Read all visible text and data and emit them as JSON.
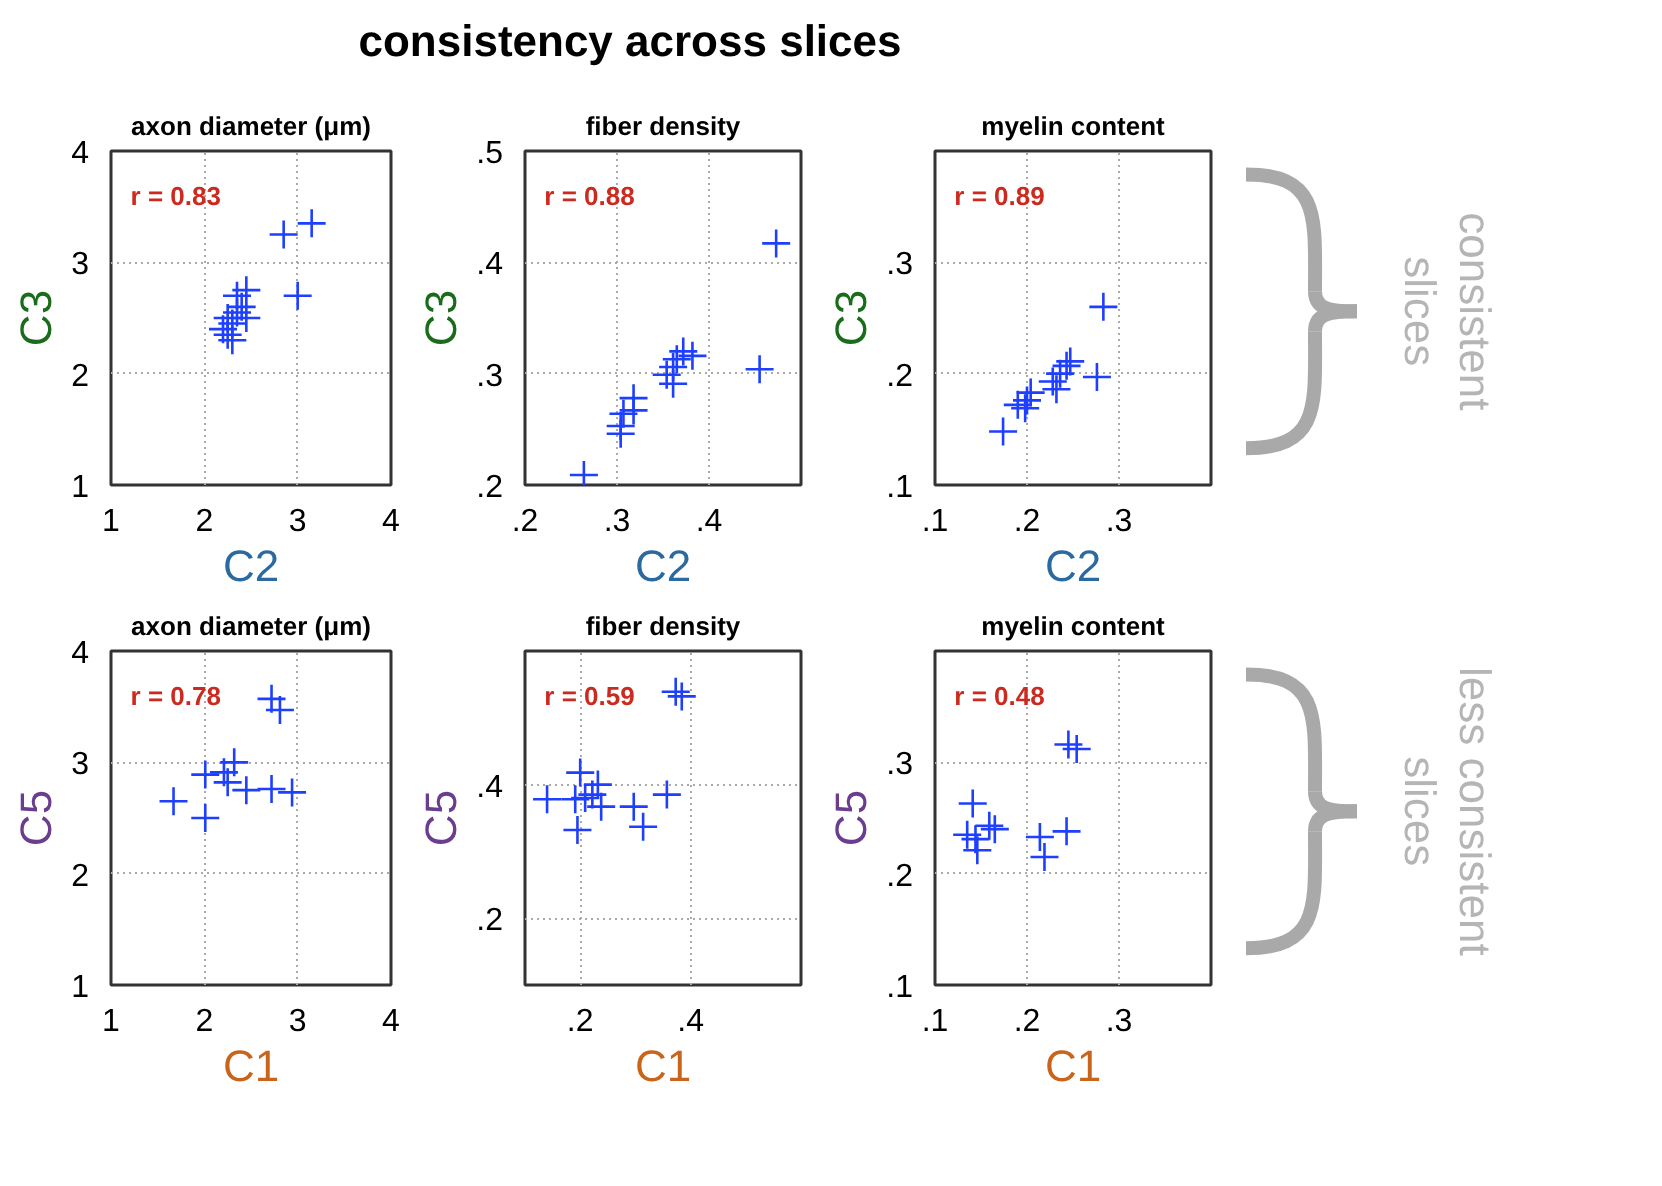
{
  "chart_data": [
    {
      "type": "scatter",
      "title": "axon diameter (μm)",
      "xlabel": "C2",
      "ylabel": "C3",
      "annotations": [
        "r = 0.83",
        "consistency across slices"
      ],
      "marker": "cross",
      "grid": true,
      "xlim": [
        1,
        4
      ],
      "ylim": [
        1,
        4
      ],
      "xticks": [
        1,
        2,
        3,
        4
      ],
      "yticks": [
        1,
        2,
        3,
        4
      ],
      "series": [
        {
          "color": "#1f3fff",
          "x": [
            2.2,
            2.25,
            2.25,
            2.3,
            2.35,
            2.35,
            2.4,
            2.45,
            2.45,
            2.85,
            3.15,
            3.0,
            2.3
          ],
          "values": [
            2.4,
            2.35,
            2.5,
            2.45,
            2.7,
            2.55,
            2.6,
            2.5,
            2.75,
            3.25,
            3.35,
            2.7,
            2.3
          ]
        }
      ]
    },
    {
      "type": "scatter",
      "title": "fiber density",
      "xlabel": "C2",
      "ylabel": "C3",
      "annotations": [
        "r = 0.88"
      ],
      "marker": "cross",
      "grid": true,
      "xlim": [
        0.2,
        0.5
      ],
      "ylim": [
        0.2,
        0.5
      ],
      "xticks": [
        {
          "value": 0.2,
          "label": ".2"
        },
        {
          "value": 0.3,
          "label": ".3"
        },
        {
          "value": 0.4,
          "label": ".4"
        }
      ],
      "yticks": [
        {
          "value": 0.2,
          "label": ".2"
        },
        {
          "value": 0.3,
          "label": ".3"
        },
        {
          "value": 0.4,
          "label": ".4"
        },
        {
          "value": 0.5,
          "label": ".5"
        }
      ],
      "series": [
        {
          "color": "#1f3fff",
          "x": [
            0.264,
            0.304,
            0.304,
            0.307,
            0.318,
            0.354,
            0.361,
            0.365,
            0.372,
            0.382,
            0.361,
            0.455,
            0.473,
            0.318
          ],
          "values": [
            0.209,
            0.253,
            0.246,
            0.264,
            0.278,
            0.299,
            0.291,
            0.313,
            0.32,
            0.316,
            0.306,
            0.304,
            0.417,
            0.267
          ]
        }
      ]
    },
    {
      "type": "scatter",
      "title": "myelin content",
      "xlabel": "C2",
      "ylabel": "C3",
      "annotations": [
        "r = 0.89",
        "consistent\nslices"
      ],
      "marker": "cross",
      "grid": true,
      "xlim": [
        0.1,
        0.4
      ],
      "ylim": [
        0.1,
        0.4
      ],
      "xticks": [
        {
          "value": 0.1,
          "label": ".1"
        },
        {
          "value": 0.2,
          "label": ".2"
        },
        {
          "value": 0.3,
          "label": ".3"
        }
      ],
      "yticks": [
        {
          "value": 0.1,
          "label": ".1"
        },
        {
          "value": 0.2,
          "label": ".2"
        },
        {
          "value": 0.3,
          "label": ".3"
        }
      ],
      "series": [
        {
          "color": "#1f3fff",
          "x": [
            0.174,
            0.19,
            0.2,
            0.204,
            0.228,
            0.232,
            0.236,
            0.243,
            0.247,
            0.276,
            0.283,
            0.198
          ],
          "values": [
            0.148,
            0.172,
            0.176,
            0.183,
            0.193,
            0.186,
            0.2,
            0.207,
            0.211,
            0.197,
            0.26,
            0.169
          ]
        }
      ]
    },
    {
      "type": "scatter",
      "title": "axon diameter (μm)",
      "xlabel": "C1",
      "ylabel": "C5",
      "annotations": [
        "r = 0.78"
      ],
      "marker": "cross",
      "grid": true,
      "xlim": [
        1,
        4
      ],
      "ylim": [
        1,
        4
      ],
      "xticks": [
        1,
        2,
        3,
        4
      ],
      "yticks": [
        1,
        2,
        3,
        4
      ],
      "series": [
        {
          "color": "#1f3fff",
          "x": [
            1.67,
            2.01,
            2.01,
            2.21,
            2.32,
            2.45,
            2.72,
            2.94,
            2.72,
            2.81,
            2.25
          ],
          "values": [
            2.65,
            2.5,
            2.89,
            2.91,
            3.0,
            2.75,
            2.76,
            2.73,
            3.57,
            3.47,
            2.82
          ]
        }
      ]
    },
    {
      "type": "scatter",
      "title": "fiber density",
      "xlabel": "C1",
      "ylabel": "C5",
      "annotations": [
        "r = 0.59"
      ],
      "marker": "cross",
      "grid": true,
      "xlim": [
        0.1,
        0.6
      ],
      "ylim": [
        0.1,
        0.6
      ],
      "xticks": [
        {
          "value": 0.2,
          "label": ".2"
        },
        {
          "value": 0.4,
          "label": ".4"
        }
      ],
      "yticks": [
        {
          "value": 0.2,
          "label": ".2"
        },
        {
          "value": 0.4,
          "label": ".4"
        }
      ],
      "series": [
        {
          "color": "#1f3fff",
          "x": [
            0.14,
            0.191,
            0.2,
            0.195,
            0.222,
            0.232,
            0.238,
            0.297,
            0.314,
            0.357,
            0.373,
            0.384,
            0.209
          ],
          "values": [
            0.378,
            0.378,
            0.418,
            0.332,
            0.385,
            0.4,
            0.367,
            0.367,
            0.337,
            0.385,
            0.539,
            0.532,
            0.38
          ]
        }
      ]
    },
    {
      "type": "scatter",
      "title": "myelin content",
      "xlabel": "C1",
      "ylabel": "C5",
      "annotations": [
        "r = 0.48",
        "less consistent\nslices"
      ],
      "marker": "cross",
      "grid": true,
      "xlim": [
        0.1,
        0.4
      ],
      "ylim": [
        0.1,
        0.4
      ],
      "xticks": [
        {
          "value": 0.1,
          "label": ".1"
        },
        {
          "value": 0.2,
          "label": ".2"
        },
        {
          "value": 0.3,
          "label": ".3"
        }
      ],
      "yticks": [
        {
          "value": 0.1,
          "label": ".1"
        },
        {
          "value": 0.2,
          "label": ".2"
        },
        {
          "value": 0.3,
          "label": ".3"
        }
      ],
      "series": [
        {
          "color": "#1f3fff",
          "x": [
            0.141,
            0.135,
            0.146,
            0.159,
            0.165,
            0.214,
            0.219,
            0.243,
            0.245,
            0.254,
            0.144
          ],
          "values": [
            0.263,
            0.235,
            0.221,
            0.243,
            0.24,
            0.233,
            0.215,
            0.238,
            0.316,
            0.312,
            0.231
          ]
        }
      ]
    }
  ]
}
